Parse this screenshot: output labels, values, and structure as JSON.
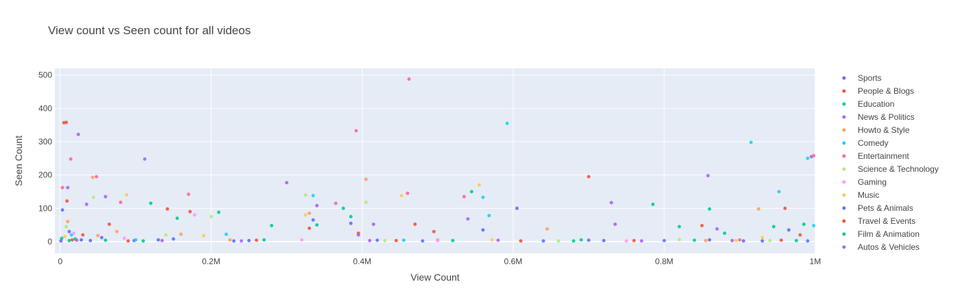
{
  "chart_data": {
    "type": "scatter",
    "title": "View count vs Seen count for all videos",
    "xlabel": "View Count",
    "ylabel": "Seen Count",
    "xlim": [
      -7000,
      1000000
    ],
    "ylim": [
      -35,
      520
    ],
    "xticks": [
      0,
      200000,
      400000,
      600000,
      800000,
      1000000
    ],
    "xtick_labels": [
      "0",
      "0.2M",
      "0.4M",
      "0.6M",
      "0.8M",
      "1M"
    ],
    "yticks": [
      0,
      100,
      200,
      300,
      400,
      500
    ],
    "ytick_labels": [
      "0",
      "100",
      "200",
      "300",
      "400",
      "500"
    ],
    "grid": true,
    "legend_position": "right",
    "plot_background": "#e5ecf6",
    "series": [
      {
        "name": "Sports",
        "color": "#636efa",
        "points": [
          [
            3000,
            95
          ],
          [
            12000,
            30
          ],
          [
            28000,
            5
          ],
          [
            55000,
            12
          ],
          [
            98000,
            3
          ],
          [
            150000,
            8
          ],
          [
            230000,
            2
          ],
          [
            335000,
            65
          ],
          [
            385000,
            55
          ],
          [
            420000,
            4
          ],
          [
            560000,
            35
          ],
          [
            605000,
            100
          ],
          [
            640000,
            2
          ],
          [
            720000,
            3
          ],
          [
            860000,
            5
          ],
          [
            930000,
            2
          ],
          [
            965000,
            35
          ],
          [
            990000,
            2
          ]
        ]
      },
      {
        "name": "People & Blogs",
        "color": "#ef553b",
        "points": [
          [
            5000,
            357
          ],
          [
            8000,
            358
          ],
          [
            9000,
            122
          ],
          [
            30000,
            20
          ],
          [
            65000,
            52
          ],
          [
            142000,
            98
          ],
          [
            172000,
            90
          ],
          [
            330000,
            40
          ],
          [
            395000,
            25
          ],
          [
            470000,
            52
          ],
          [
            495000,
            30
          ],
          [
            700000,
            195
          ],
          [
            850000,
            48
          ],
          [
            980000,
            20
          ],
          [
            960000,
            100
          ]
        ]
      },
      {
        "name": "Education",
        "color": "#00cc96",
        "points": [
          [
            2000,
            10
          ],
          [
            20000,
            8
          ],
          [
            60000,
            4
          ],
          [
            120000,
            115
          ],
          [
            155000,
            70
          ],
          [
            210000,
            88
          ],
          [
            280000,
            48
          ],
          [
            340000,
            50
          ],
          [
            375000,
            100
          ],
          [
            385000,
            75
          ],
          [
            545000,
            150
          ],
          [
            690000,
            5
          ],
          [
            785000,
            112
          ],
          [
            820000,
            45
          ],
          [
            860000,
            98
          ],
          [
            880000,
            25
          ],
          [
            945000,
            45
          ],
          [
            985000,
            52
          ]
        ]
      },
      {
        "name": "News & Politics",
        "color": "#ab63fa",
        "points": [
          [
            10000,
            162
          ],
          [
            24000,
            322
          ],
          [
            35000,
            112
          ],
          [
            60000,
            135
          ],
          [
            112000,
            248
          ],
          [
            300000,
            177
          ],
          [
            340000,
            108
          ],
          [
            395000,
            20
          ],
          [
            415000,
            52
          ],
          [
            540000,
            68
          ],
          [
            730000,
            117
          ],
          [
            735000,
            52
          ],
          [
            858000,
            198
          ],
          [
            870000,
            38
          ],
          [
            995000,
            255
          ]
        ]
      },
      {
        "name": "Howto & Style",
        "color": "#ffa15a",
        "points": [
          [
            10000,
            60
          ],
          [
            43000,
            193
          ],
          [
            50000,
            18
          ],
          [
            75000,
            30
          ],
          [
            160000,
            22
          ],
          [
            225000,
            5
          ],
          [
            330000,
            85
          ],
          [
            405000,
            187
          ],
          [
            500000,
            5
          ],
          [
            645000,
            38
          ],
          [
            855000,
            3
          ],
          [
            925000,
            98
          ]
        ]
      },
      {
        "name": "Comedy",
        "color": "#19d3f3",
        "points": [
          [
            15000,
            20
          ],
          [
            100000,
            5
          ],
          [
            220000,
            22
          ],
          [
            335000,
            138
          ],
          [
            455000,
            4
          ],
          [
            560000,
            133
          ],
          [
            568000,
            78
          ],
          [
            592000,
            355
          ],
          [
            915000,
            298
          ],
          [
            952000,
            150
          ],
          [
            990000,
            250
          ],
          [
            998000,
            48
          ]
        ]
      },
      {
        "name": "Entertainment",
        "color": "#ff6692",
        "points": [
          [
            3000,
            162
          ],
          [
            14000,
            248
          ],
          [
            48000,
            195
          ],
          [
            80000,
            118
          ],
          [
            170000,
            142
          ],
          [
            365000,
            115
          ],
          [
            392000,
            333
          ],
          [
            460000,
            145
          ],
          [
            462000,
            488
          ],
          [
            535000,
            135
          ],
          [
            900000,
            5
          ],
          [
            998000,
            258
          ]
        ]
      },
      {
        "name": "Science & Technology",
        "color": "#b6e880",
        "points": [
          [
            8000,
            45
          ],
          [
            44000,
            133
          ],
          [
            140000,
            20
          ],
          [
            200000,
            75
          ],
          [
            325000,
            140
          ],
          [
            405000,
            118
          ],
          [
            430000,
            3
          ],
          [
            660000,
            2
          ],
          [
            820000,
            6
          ],
          [
            940000,
            3
          ]
        ]
      },
      {
        "name": "Gaming",
        "color": "#ff97ff",
        "points": [
          [
            18000,
            25
          ],
          [
            85000,
            10
          ],
          [
            178000,
            80
          ],
          [
            320000,
            5
          ],
          [
            500000,
            3
          ],
          [
            750000,
            2
          ]
        ]
      },
      {
        "name": "Music",
        "color": "#fecb52",
        "points": [
          [
            6000,
            15
          ],
          [
            88000,
            140
          ],
          [
            190000,
            18
          ],
          [
            325000,
            80
          ],
          [
            452000,
            138
          ],
          [
            555000,
            170
          ],
          [
            572000,
            5
          ],
          [
            895000,
            3
          ],
          [
            930000,
            12
          ]
        ]
      },
      {
        "name": "Pets & Animals",
        "color": "#636efa",
        "points": [
          [
            1000,
            2
          ],
          [
            40000,
            3
          ],
          [
            130000,
            5
          ],
          [
            250000,
            3
          ],
          [
            480000,
            2
          ],
          [
            700000,
            4
          ],
          [
            800000,
            3
          ],
          [
            905000,
            2
          ]
        ]
      },
      {
        "name": "Travel & Events",
        "color": "#ef553b",
        "points": [
          [
            16000,
            5
          ],
          [
            90000,
            2
          ],
          [
            260000,
            4
          ],
          [
            445000,
            3
          ],
          [
            610000,
            2
          ],
          [
            760000,
            3
          ],
          [
            955000,
            4
          ]
        ]
      },
      {
        "name": "Film & Animation",
        "color": "#00cc96",
        "points": [
          [
            12000,
            3
          ],
          [
            110000,
            2
          ],
          [
            270000,
            5
          ],
          [
            520000,
            3
          ],
          [
            680000,
            2
          ],
          [
            840000,
            4
          ],
          [
            975000,
            3
          ]
        ]
      },
      {
        "name": "Autos & Vehicles",
        "color": "#ab63fa",
        "points": [
          [
            22000,
            4
          ],
          [
            135000,
            3
          ],
          [
            240000,
            2
          ],
          [
            410000,
            3
          ],
          [
            580000,
            4
          ],
          [
            770000,
            2
          ],
          [
            890000,
            3
          ]
        ]
      }
    ]
  }
}
